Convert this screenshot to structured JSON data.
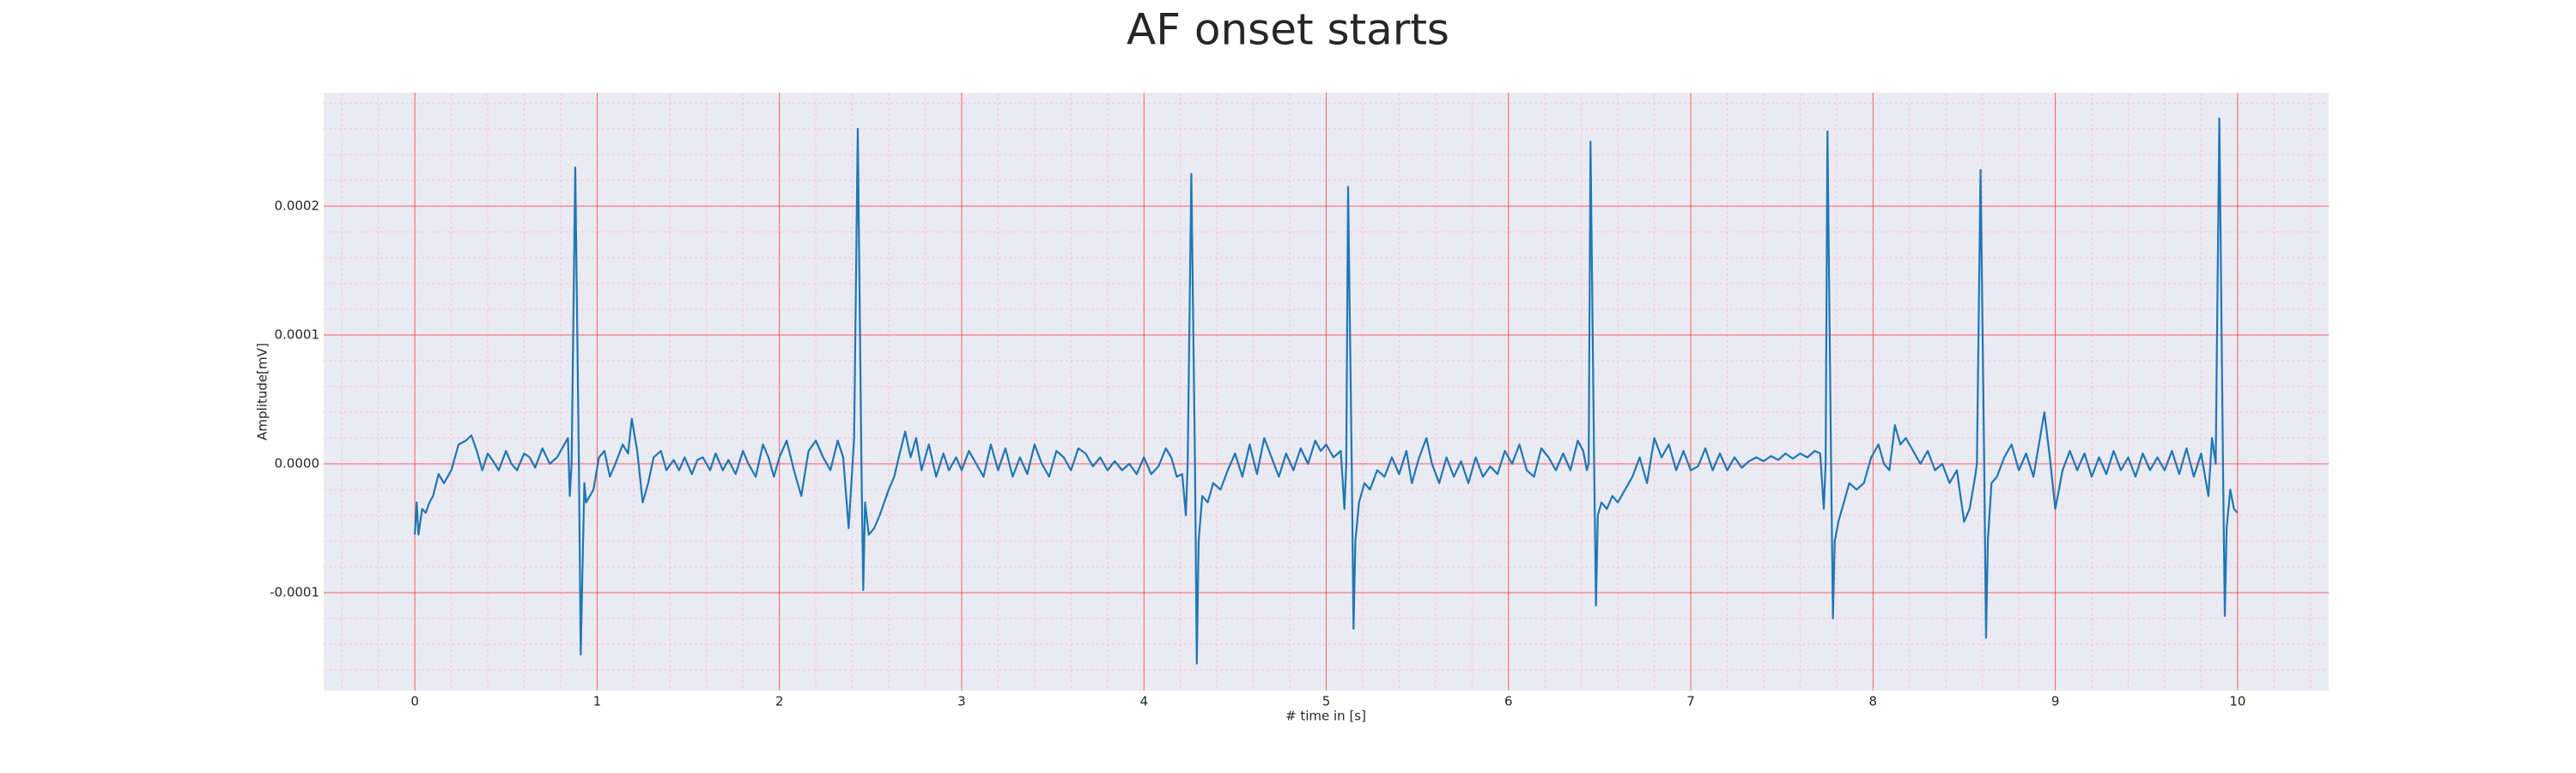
{
  "chart_data": {
    "type": "line",
    "title": "AF onset starts",
    "x_label": "# time in [s]",
    "y_label": "Amplitude[mV]",
    "color": "#1f77b4",
    "grid": true,
    "minor_grid": true,
    "xlim": [
      -0.5,
      10.5
    ],
    "xticks": [
      0,
      1,
      2,
      3,
      4,
      5,
      6,
      7,
      8,
      9,
      10
    ],
    "ylim": [
      -0.000176,
      0.000288
    ],
    "yticks": [
      -0.0001,
      {
        "value": 0,
        "label": "0.0000"
      },
      0.0001,
      0.0002
    ],
    "x": [
      0.0,
      0.01,
      0.02,
      0.04,
      0.06,
      0.08,
      0.1,
      0.13,
      0.16,
      0.2,
      0.24,
      0.28,
      0.31,
      0.34,
      0.37,
      0.4,
      0.43,
      0.46,
      0.5,
      0.53,
      0.56,
      0.6,
      0.63,
      0.66,
      0.7,
      0.74,
      0.78,
      0.82,
      0.84,
      0.85,
      0.86,
      0.88,
      0.9,
      0.91,
      0.92,
      0.93,
      0.94,
      0.96,
      0.98,
      1.01,
      1.04,
      1.07,
      1.1,
      1.14,
      1.17,
      1.19,
      1.22,
      1.25,
      1.28,
      1.31,
      1.35,
      1.38,
      1.42,
      1.45,
      1.48,
      1.52,
      1.55,
      1.58,
      1.62,
      1.65,
      1.69,
      1.72,
      1.76,
      1.8,
      1.83,
      1.87,
      1.91,
      1.94,
      1.97,
      2.0,
      2.04,
      2.08,
      2.12,
      2.16,
      2.2,
      2.24,
      2.28,
      2.32,
      2.35,
      2.38,
      2.41,
      2.43,
      2.45,
      2.46,
      2.47,
      2.49,
      2.52,
      2.55,
      2.6,
      2.63,
      2.66,
      2.69,
      2.72,
      2.75,
      2.78,
      2.82,
      2.86,
      2.9,
      2.93,
      2.97,
      3.0,
      3.04,
      3.08,
      3.12,
      3.16,
      3.2,
      3.24,
      3.28,
      3.32,
      3.36,
      3.4,
      3.44,
      3.48,
      3.52,
      3.56,
      3.6,
      3.64,
      3.68,
      3.72,
      3.76,
      3.8,
      3.84,
      3.88,
      3.92,
      3.96,
      4.0,
      4.04,
      4.08,
      4.12,
      4.15,
      4.18,
      4.21,
      4.23,
      4.24,
      4.26,
      4.28,
      4.29,
      4.3,
      4.32,
      4.35,
      4.38,
      4.42,
      4.46,
      4.5,
      4.54,
      4.58,
      4.62,
      4.66,
      4.7,
      4.74,
      4.78,
      4.82,
      4.86,
      4.9,
      4.94,
      4.97,
      5.0,
      5.04,
      5.08,
      5.1,
      5.11,
      5.12,
      5.14,
      5.15,
      5.16,
      5.18,
      5.21,
      5.24,
      5.28,
      5.32,
      5.36,
      5.4,
      5.44,
      5.47,
      5.51,
      5.55,
      5.58,
      5.62,
      5.66,
      5.7,
      5.74,
      5.78,
      5.82,
      5.86,
      5.9,
      5.94,
      5.98,
      6.02,
      6.06,
      6.1,
      6.14,
      6.18,
      6.22,
      6.26,
      6.3,
      6.34,
      6.38,
      6.41,
      6.43,
      6.44,
      6.45,
      6.47,
      6.48,
      6.49,
      6.51,
      6.54,
      6.57,
      6.6,
      6.64,
      6.68,
      6.72,
      6.76,
      6.8,
      6.84,
      6.88,
      6.92,
      6.96,
      7.0,
      7.04,
      7.08,
      7.12,
      7.16,
      7.2,
      7.24,
      7.28,
      7.32,
      7.36,
      7.4,
      7.44,
      7.48,
      7.52,
      7.56,
      7.6,
      7.64,
      7.68,
      7.71,
      7.73,
      7.74,
      7.75,
      7.77,
      7.78,
      7.79,
      7.81,
      7.84,
      7.87,
      7.91,
      7.95,
      7.99,
      8.03,
      8.06,
      8.09,
      8.12,
      8.15,
      8.18,
      8.22,
      8.26,
      8.3,
      8.34,
      8.38,
      8.42,
      8.46,
      8.5,
      8.53,
      8.56,
      8.57,
      8.59,
      8.61,
      8.62,
      8.63,
      8.65,
      8.68,
      8.72,
      8.76,
      8.8,
      8.84,
      8.88,
      8.91,
      8.94,
      8.97,
      9.0,
      9.04,
      9.08,
      9.12,
      9.16,
      9.2,
      9.24,
      9.28,
      9.32,
      9.36,
      9.4,
      9.44,
      9.48,
      9.52,
      9.56,
      9.6,
      9.64,
      9.68,
      9.72,
      9.76,
      9.8,
      9.84,
      9.86,
      9.88,
      9.9,
      9.92,
      9.93,
      9.94,
      9.96,
      9.98,
      10.0
    ],
    "values": [
      -5.5e-05,
      -3e-05,
      -5.5e-05,
      -3.5e-05,
      -3.8e-05,
      -3e-05,
      -2.5e-05,
      -8e-06,
      -1.5e-05,
      -5e-06,
      1.5e-05,
      1.8e-05,
      2.2e-05,
      1e-05,
      -5e-06,
      8e-06,
      2e-06,
      -5e-06,
      1e-05,
      0,
      -5e-06,
      8e-06,
      5e-06,
      -3e-06,
      1.2e-05,
      0,
      5e-06,
      1.5e-05,
      2e-05,
      -2.5e-05,
      0,
      0.00023,
      0,
      -0.000148,
      -8e-05,
      -1.5e-05,
      -3e-05,
      -2.5e-05,
      -2e-05,
      5e-06,
      1e-05,
      -1e-05,
      0,
      1.5e-05,
      8e-06,
      3.5e-05,
      1e-05,
      -3e-05,
      -1.5e-05,
      5e-06,
      1e-05,
      -5e-06,
      3e-06,
      -5e-06,
      5e-06,
      -8e-06,
      3e-06,
      5e-06,
      -5e-06,
      8e-06,
      -5e-06,
      3e-06,
      -8e-06,
      1e-05,
      0,
      -1e-05,
      1.5e-05,
      5e-06,
      -1e-05,
      5e-06,
      1.8e-05,
      -5e-06,
      -2.5e-05,
      1e-05,
      1.8e-05,
      5e-06,
      -5e-06,
      1.8e-05,
      5e-06,
      -5e-05,
      2e-05,
      0.00026,
      0,
      -9.8e-05,
      -3e-05,
      -5.5e-05,
      -5e-05,
      -4e-05,
      -2e-05,
      -1e-05,
      8e-06,
      2.5e-05,
      5e-06,
      2e-05,
      -5e-06,
      1.5e-05,
      -1e-05,
      8e-06,
      -5e-06,
      5e-06,
      -5e-06,
      1e-05,
      0,
      -1e-05,
      1.5e-05,
      -5e-06,
      1.2e-05,
      -1e-05,
      5e-06,
      -8e-06,
      1.5e-05,
      0,
      -1e-05,
      1e-05,
      5e-06,
      -5e-06,
      1.2e-05,
      8e-06,
      -2e-06,
      5e-06,
      -5e-06,
      2e-06,
      -5e-06,
      0,
      -8e-06,
      5e-06,
      -8e-06,
      -2e-06,
      1.2e-05,
      5e-06,
      -1e-05,
      -8e-06,
      -4e-05,
      0,
      0.000225,
      0,
      -0.000155,
      -6e-05,
      -2.5e-05,
      -3e-05,
      -1.5e-05,
      -2e-05,
      -5e-06,
      8e-06,
      -1e-05,
      1.5e-05,
      -8e-06,
      2e-05,
      5e-06,
      -1e-05,
      8e-06,
      -5e-06,
      1.2e-05,
      0,
      1.8e-05,
      1e-05,
      1.5e-05,
      5e-06,
      1e-05,
      -3.5e-05,
      0,
      0.000215,
      0,
      -0.000128,
      -6e-05,
      -3e-05,
      -1.5e-05,
      -2e-05,
      -5e-06,
      -1e-05,
      5e-06,
      -8e-06,
      1e-05,
      -1.5e-05,
      5e-06,
      2e-05,
      0,
      -1.5e-05,
      5e-06,
      -1e-05,
      2e-06,
      -1.5e-05,
      5e-06,
      -1e-05,
      -2e-06,
      -8e-06,
      1e-05,
      0,
      1.5e-05,
      -5e-06,
      -1e-05,
      1.2e-05,
      5e-06,
      -5e-06,
      8e-06,
      -5e-06,
      1.8e-05,
      1e-05,
      -5e-06,
      0,
      0.00025,
      0,
      -0.00011,
      -4e-05,
      -3e-05,
      -3.5e-05,
      -2.5e-05,
      -3e-05,
      -2e-05,
      -1e-05,
      5e-06,
      -1.5e-05,
      2e-05,
      5e-06,
      1.5e-05,
      -5e-06,
      1e-05,
      -5e-06,
      -2e-06,
      1.2e-05,
      -5e-06,
      8e-06,
      -5e-06,
      5e-06,
      -3e-06,
      2e-06,
      5e-06,
      2e-06,
      6e-06,
      3e-06,
      8e-06,
      4e-06,
      8e-06,
      5e-06,
      1e-05,
      8e-06,
      -3.5e-05,
      0,
      0.000258,
      0,
      -0.00012,
      -6e-05,
      -4.5e-05,
      -3e-05,
      -1.5e-05,
      -2e-05,
      -1.5e-05,
      5e-06,
      1.5e-05,
      0,
      -5e-06,
      3e-05,
      1.5e-05,
      2e-05,
      1e-05,
      0,
      1e-05,
      -5e-06,
      0,
      -1.5e-05,
      -5e-06,
      -4.5e-05,
      -3.5e-05,
      -1e-05,
      0,
      0.000228,
      0,
      -0.000135,
      -6e-05,
      -1.5e-05,
      -1e-05,
      5e-06,
      1.5e-05,
      -5e-06,
      8e-06,
      -1e-05,
      1.5e-05,
      4e-05,
      5e-06,
      -3.5e-05,
      -5e-06,
      1e-05,
      -5e-06,
      8e-06,
      -1e-05,
      5e-06,
      -8e-06,
      1e-05,
      -5e-06,
      5e-06,
      -1e-05,
      8e-06,
      -5e-06,
      5e-06,
      -5e-06,
      1e-05,
      -8e-06,
      1.2e-05,
      -1e-05,
      8e-06,
      -2.5e-05,
      2e-05,
      0,
      0.000268,
      0,
      -0.000118,
      -5e-05,
      -2e-05,
      -3.5e-05,
      -3.8e-05
    ]
  }
}
